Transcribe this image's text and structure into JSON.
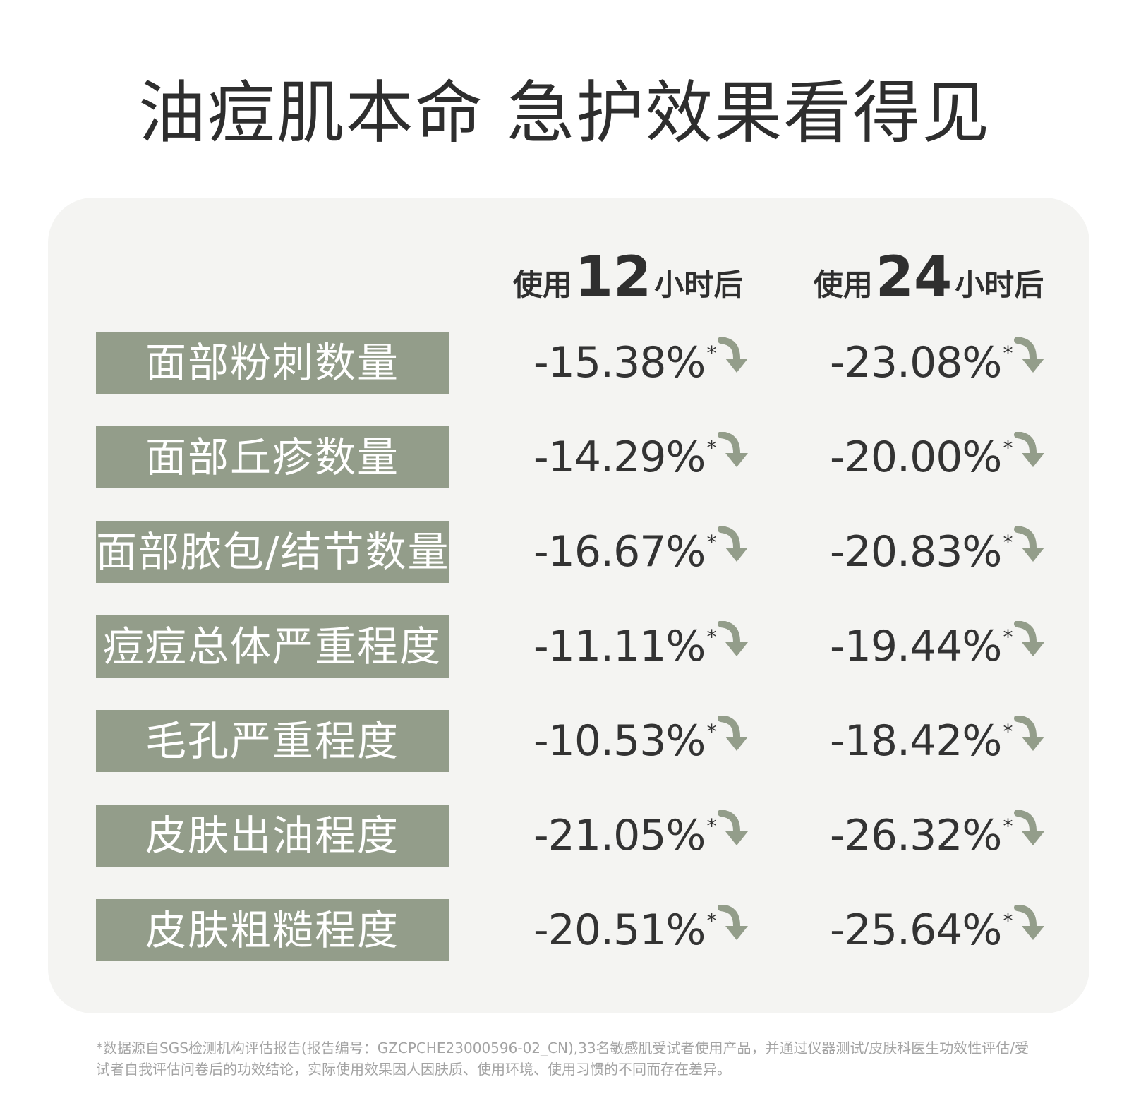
{
  "title": "油痘肌本命  急护效果看得见",
  "header": {
    "col12": {
      "pre": "使用",
      "num": "12",
      "post": "小时后"
    },
    "col24": {
      "pre": "使用",
      "num": "24",
      "post": "小时后"
    }
  },
  "rows": [
    {
      "label": "面部粉刺数量",
      "v12": "-15.38%",
      "v24": "-23.08%"
    },
    {
      "label": "面部丘疹数量",
      "v12": "-14.29%",
      "v24": "-20.00%"
    },
    {
      "label": "面部脓包/结节数量",
      "v12": "-16.67%",
      "v24": "-20.83%"
    },
    {
      "label": "痘痘总体严重程度",
      "v12": "-11.11%",
      "v24": "-19.44%"
    },
    {
      "label": "毛孔严重程度",
      "v12": "-10.53%",
      "v24": "-18.42%"
    },
    {
      "label": "皮肤出油程度",
      "v12": "-21.05%",
      "v24": "-26.32%"
    },
    {
      "label": "皮肤粗糙程度",
      "v12": "-20.51%",
      "v24": "-25.64%"
    }
  ],
  "star": "*",
  "icons": {
    "decrease": "down-arrow-icon"
  },
  "colors": {
    "accent": "#939d8a",
    "panel": "#f4f4f2"
  },
  "footnote": "*数据源自SGS检测机构评估报告(报告编号：GZCPCHE23000596-02_CN),33名敏感肌受试者使用产品，并通过仪器测试/皮肤科医生功效性评估/受试者自我评估问卷后的功效结论，实际使用效果因人因肤质、使用环境、使用习惯的不同而存在差异。"
}
